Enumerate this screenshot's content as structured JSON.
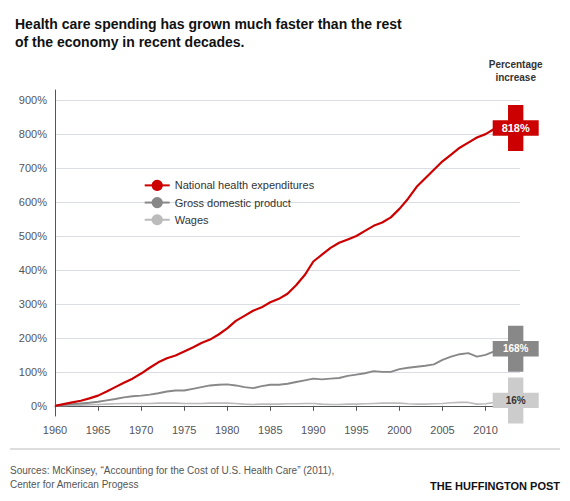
{
  "chart_data": {
    "type": "line",
    "title": "Health care spending has grown much faster than the rest\nof the economy in recent decades.",
    "x": [
      1960,
      1961,
      1962,
      1963,
      1964,
      1965,
      1966,
      1967,
      1968,
      1969,
      1970,
      1971,
      1972,
      1973,
      1974,
      1975,
      1976,
      1977,
      1978,
      1979,
      1980,
      1981,
      1982,
      1983,
      1984,
      1985,
      1986,
      1987,
      1988,
      1989,
      1990,
      1991,
      1992,
      1993,
      1994,
      1995,
      1996,
      1997,
      1998,
      1999,
      2000,
      2001,
      2002,
      2003,
      2004,
      2005,
      2006,
      2007,
      2008,
      2009,
      2010,
      2011,
      2012
    ],
    "series": [
      {
        "name": "National health expenditures",
        "color": "#cc0000",
        "values": [
          0,
          5,
          10,
          15,
          22,
          30,
          42,
          55,
          68,
          80,
          95,
          112,
          128,
          140,
          148,
          160,
          172,
          185,
          195,
          210,
          228,
          250,
          265,
          280,
          290,
          305,
          315,
          330,
          355,
          385,
          425,
          445,
          465,
          480,
          490,
          500,
          515,
          530,
          540,
          555,
          580,
          610,
          645,
          670,
          695,
          720,
          740,
          760,
          775,
          790,
          800,
          815,
          818
        ]
      },
      {
        "name": "Gross domestic product",
        "color": "#888888",
        "values": [
          0,
          3,
          5,
          7,
          9,
          12,
          16,
          20,
          25,
          28,
          30,
          33,
          37,
          42,
          45,
          45,
          50,
          55,
          60,
          62,
          63,
          60,
          55,
          52,
          58,
          62,
          62,
          65,
          70,
          75,
          80,
          78,
          80,
          82,
          88,
          92,
          96,
          102,
          100,
          100,
          108,
          112,
          115,
          118,
          122,
          135,
          145,
          152,
          155,
          145,
          150,
          160,
          168
        ]
      },
      {
        "name": "Wages",
        "color": "#bbbbbb",
        "values": [
          0,
          1,
          2,
          2,
          3,
          4,
          5,
          6,
          7,
          7,
          7,
          7,
          8,
          8,
          8,
          7,
          7,
          7,
          8,
          8,
          8,
          7,
          5,
          4,
          5,
          5,
          5,
          6,
          6,
          7,
          7,
          5,
          4,
          4,
          5,
          5,
          6,
          7,
          8,
          8,
          8,
          6,
          5,
          5,
          6,
          7,
          9,
          10,
          10,
          5,
          6,
          10,
          16
        ]
      }
    ],
    "xlim": [
      1960,
      2014
    ],
    "xticks": [
      1960,
      1965,
      1970,
      1975,
      1980,
      1985,
      1990,
      1995,
      2000,
      2005,
      2010
    ],
    "ylim": [
      -30,
      930
    ],
    "yticks": [
      {
        "value": 0,
        "label": "0%"
      },
      {
        "value": 100,
        "label": "100%"
      },
      {
        "value": 200,
        "label": "200%"
      },
      {
        "value": 300,
        "label": "300%"
      },
      {
        "value": 400,
        "label": "400%"
      },
      {
        "value": 500,
        "label": "500%"
      },
      {
        "value": 600,
        "label": "600%"
      },
      {
        "value": 700,
        "label": "700%"
      },
      {
        "value": 800,
        "label": "800%"
      },
      {
        "value": 900,
        "label": "900%"
      }
    ],
    "grid": true,
    "legend": "upper left",
    "annotation_title": "Percentage\nincrease",
    "annotations": [
      {
        "text": "818%",
        "x": 2013.5,
        "y": 818,
        "color": "#cc0000"
      },
      {
        "text": "168%",
        "x": 2013.5,
        "y": 168,
        "color": "#888888"
      },
      {
        "text": "16%",
        "x": 2013.5,
        "y": 16,
        "color": "#cccccc"
      }
    ],
    "footnote": "Sources: McKinsey, “Accounting for the Cost of U.S. Health Care” (2011),\nCenter for American Progess",
    "credit": "THE HUFFINGTON POST"
  }
}
